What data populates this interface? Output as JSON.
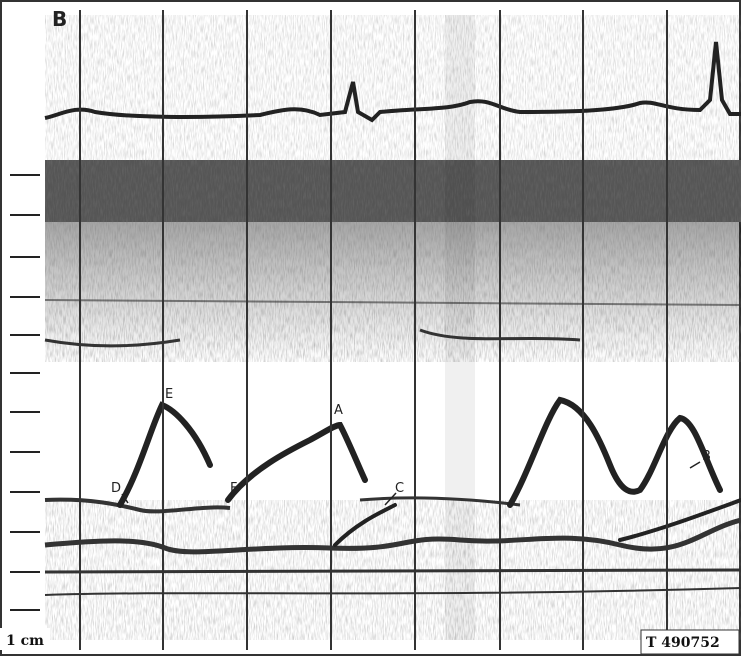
{
  "panel_label": "B",
  "labels": [
    "E",
    "A",
    "D",
    "F",
    "C",
    "B"
  ],
  "scale_label": "1 cm",
  "figure_id": "T 490752"
}
